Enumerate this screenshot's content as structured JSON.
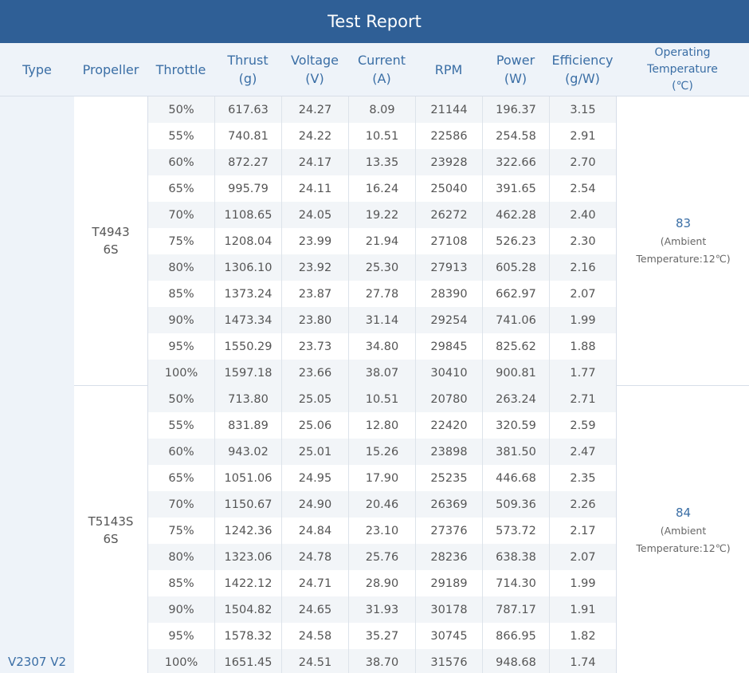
{
  "title": "Test Report",
  "columns": [
    {
      "label": "Type",
      "unit": ""
    },
    {
      "label": "Propeller",
      "unit": ""
    },
    {
      "label": "Throttle",
      "unit": ""
    },
    {
      "label": "Thrust",
      "unit": "(g)"
    },
    {
      "label": "Voltage",
      "unit": "(V)"
    },
    {
      "label": "Current",
      "unit": "(A)"
    },
    {
      "label": "RPM",
      "unit": ""
    },
    {
      "label": "Power",
      "unit": "(W)"
    },
    {
      "label": "Efficiency",
      "unit": "(g/W)"
    },
    {
      "label": "Operating Temperature",
      "unit": "(℃)"
    }
  ],
  "type": "V2307 V2",
  "groups": [
    {
      "propeller": "T4943 6S",
      "temperature": "83",
      "ambient": "(Ambient Temperature:12℃)",
      "rows": [
        [
          "50%",
          "617.63",
          "24.27",
          "8.09",
          "21144",
          "196.37",
          "3.15"
        ],
        [
          "55%",
          "740.81",
          "24.22",
          "10.51",
          "22586",
          "254.58",
          "2.91"
        ],
        [
          "60%",
          "872.27",
          "24.17",
          "13.35",
          "23928",
          "322.66",
          "2.70"
        ],
        [
          "65%",
          "995.79",
          "24.11",
          "16.24",
          "25040",
          "391.65",
          "2.54"
        ],
        [
          "70%",
          "1108.65",
          "24.05",
          "19.22",
          "26272",
          "462.28",
          "2.40"
        ],
        [
          "75%",
          "1208.04",
          "23.99",
          "21.94",
          "27108",
          "526.23",
          "2.30"
        ],
        [
          "80%",
          "1306.10",
          "23.92",
          "25.30",
          "27913",
          "605.28",
          "2.16"
        ],
        [
          "85%",
          "1373.24",
          "23.87",
          "27.78",
          "28390",
          "662.97",
          "2.07"
        ],
        [
          "90%",
          "1473.34",
          "23.80",
          "31.14",
          "29254",
          "741.06",
          "1.99"
        ],
        [
          "95%",
          "1550.29",
          "23.73",
          "34.80",
          "29845",
          "825.62",
          "1.88"
        ],
        [
          "100%",
          "1597.18",
          "23.66",
          "38.07",
          "30410",
          "900.81",
          "1.77"
        ]
      ]
    },
    {
      "propeller": "T5143S 6S",
      "temperature": "84",
      "ambient": "(Ambient Temperature:12℃)",
      "rows": [
        [
          "50%",
          "713.80",
          "25.05",
          "10.51",
          "20780",
          "263.24",
          "2.71"
        ],
        [
          "55%",
          "831.89",
          "25.06",
          "12.80",
          "22420",
          "320.59",
          "2.59"
        ],
        [
          "60%",
          "943.02",
          "25.01",
          "15.26",
          "23898",
          "381.50",
          "2.47"
        ],
        [
          "65%",
          "1051.06",
          "24.95",
          "17.90",
          "25235",
          "446.68",
          "2.35"
        ],
        [
          "70%",
          "1150.67",
          "24.90",
          "20.46",
          "26369",
          "509.36",
          "2.26"
        ],
        [
          "75%",
          "1242.36",
          "24.84",
          "23.10",
          "27376",
          "573.72",
          "2.17"
        ],
        [
          "80%",
          "1323.06",
          "24.78",
          "25.76",
          "28236",
          "638.38",
          "2.07"
        ],
        [
          "85%",
          "1422.12",
          "24.71",
          "28.90",
          "29189",
          "714.30",
          "1.99"
        ],
        [
          "90%",
          "1504.82",
          "24.65",
          "31.93",
          "30178",
          "787.17",
          "1.91"
        ],
        [
          "95%",
          "1578.32",
          "24.58",
          "35.27",
          "30745",
          "866.95",
          "1.82"
        ],
        [
          "100%",
          "1651.45",
          "24.51",
          "38.70",
          "31576",
          "948.68",
          "1.74"
        ]
      ]
    }
  ]
}
